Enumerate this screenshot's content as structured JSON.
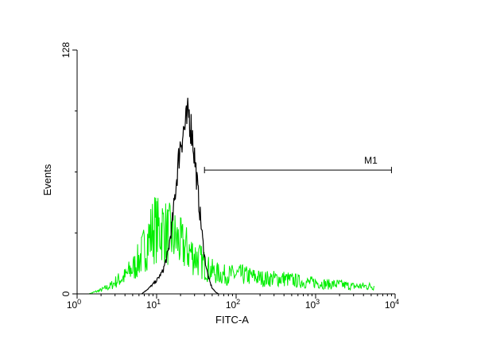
{
  "chart_data": {
    "type": "line",
    "title": "",
    "xlabel": "FITC-A",
    "ylabel": "Events",
    "x_scale": "log",
    "xlim": [
      1,
      10000
    ],
    "ylim": [
      0,
      128
    ],
    "x_ticks": [
      {
        "base": "10",
        "exp": "0",
        "value": 1
      },
      {
        "base": "10",
        "exp": "1",
        "value": 10
      },
      {
        "base": "10",
        "exp": "2",
        "value": 100
      },
      {
        "base": "10",
        "exp": "3",
        "value": 1000
      },
      {
        "base": "10",
        "exp": "4",
        "value": 10000
      }
    ],
    "y_ticks": [
      {
        "label": "0",
        "value": 0
      },
      {
        "label": "128",
        "value": 128
      }
    ],
    "grid": false,
    "series": [
      {
        "color": "#00ee00",
        "x": [
          1.4,
          2.0,
          2.6,
          3.2,
          4.0,
          4.6,
          5.2,
          5.8,
          6.4,
          7.0,
          7.7,
          8.6,
          9.5,
          10.5,
          11.5,
          12.5,
          13.5,
          14.5,
          16,
          18,
          20,
          23,
          26,
          30,
          34,
          38,
          45,
          55,
          70,
          90,
          120,
          160,
          220,
          300,
          400,
          550,
          750,
          1000,
          1400,
          2000,
          2800,
          4000,
          5500
        ],
        "y": [
          0,
          2,
          4,
          7,
          9,
          12,
          14,
          17,
          20,
          24,
          28,
          32,
          35,
          33,
          35,
          34,
          31,
          31,
          30,
          28,
          26,
          24,
          22,
          20,
          18,
          16,
          13,
          11,
          10,
          10,
          10,
          9,
          8,
          8,
          8,
          7,
          6,
          6,
          5,
          5,
          4,
          4,
          4
        ]
      },
      {
        "color": "#000000",
        "x": [
          6.5,
          8,
          10,
          12,
          14,
          16,
          18,
          20,
          22,
          24,
          25.5,
          27,
          28.5,
          30,
          32,
          34,
          36,
          38,
          40,
          43,
          46,
          50,
          55,
          60
        ],
        "y": [
          0,
          3,
          7,
          12,
          22,
          40,
          62,
          80,
          86,
          90,
          95,
          88,
          82,
          72,
          60,
          48,
          38,
          28,
          20,
          12,
          7,
          3,
          1,
          0
        ]
      }
    ],
    "annotations": [
      {
        "label": "M1",
        "x_start": 40,
        "x_end": 9000,
        "y": 65
      }
    ]
  }
}
